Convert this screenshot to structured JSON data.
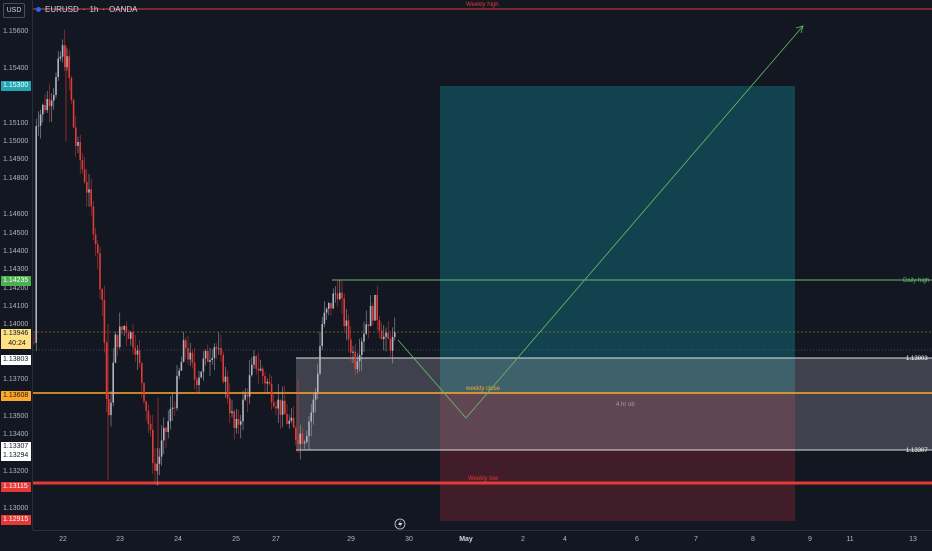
{
  "header": {
    "symbol": "EURUSD",
    "interval": "1h",
    "broker": "OANDA",
    "currency": "USD"
  },
  "price_axis": {
    "ticks": [
      "1.15600",
      "1.15400",
      "1.15100",
      "1.15000",
      "1.14900",
      "1.14800",
      "1.14600",
      "1.14500",
      "1.14400",
      "1.14300",
      "1.14200",
      "1.14100",
      "1.14000",
      "1.13700",
      "1.13500",
      "1.13400",
      "1.13200",
      "1.13000"
    ],
    "badges": [
      {
        "price": "1.15300",
        "color": "#22a6b3",
        "text_color": "#ffffff"
      },
      {
        "price": "1.14235",
        "color": "#4caf50",
        "text_color": "#ffffff"
      },
      {
        "price": "1.13946",
        "sub": "40:24",
        "color": "#ffe082",
        "text_color": "#131722"
      },
      {
        "price": "1.13803",
        "color": "#ffffff",
        "text_color": "#131722"
      },
      {
        "price": "1.13608",
        "color": "#ffa726",
        "text_color": "#131722"
      },
      {
        "price": "1.13307",
        "color": "#ffffff",
        "text_color": "#131722"
      },
      {
        "price": "1.13294",
        "color": "#ffffff",
        "text_color": "#131722"
      },
      {
        "price": "1.13115",
        "color": "#e53935",
        "text_color": "#ffffff"
      },
      {
        "price": "1.12915",
        "color": "#e53935",
        "text_color": "#ffffff"
      }
    ]
  },
  "annotations": {
    "weekly_high": "Weekly high",
    "daily_high": "Daily high",
    "weekly_close": "weekly close",
    "weekly_low": "Weekly low",
    "four_hr_ob": "4 hr ob",
    "level_upper": "1.13803",
    "level_lower": "1.13307"
  },
  "time_axis": [
    "22",
    "23",
    "24",
    "25",
    "27",
    "29",
    "30",
    "May",
    "2",
    "4",
    "6",
    "7",
    "8",
    "9",
    "11",
    "13"
  ],
  "colors": {
    "bull": "#b2b5be",
    "bear": "#e53935",
    "bg": "#131722",
    "target": "#1b5e6b",
    "stop": "#5c1f2e"
  },
  "icons": {
    "replay": "lightning-icon"
  }
}
